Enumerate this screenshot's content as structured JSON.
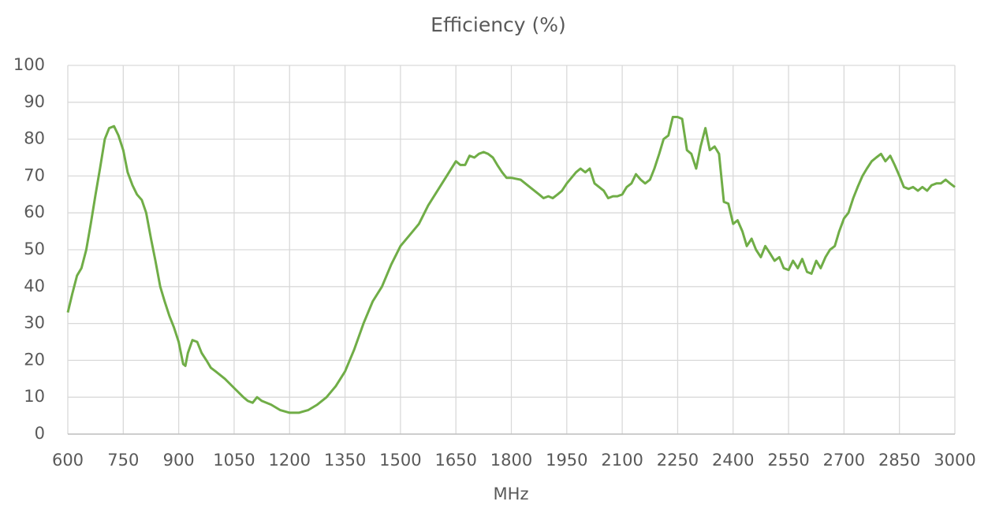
{
  "chart_data": {
    "type": "line",
    "title": "Efficiency (%)",
    "x_label": "MHz",
    "x": [
      600,
      612,
      625,
      637,
      650,
      662,
      675,
      687,
      700,
      712,
      725,
      737,
      750,
      762,
      775,
      787,
      800,
      812,
      825,
      837,
      850,
      862,
      875,
      887,
      900,
      912,
      918,
      925,
      937,
      950,
      962,
      975,
      987,
      1000,
      1025,
      1050,
      1075,
      1087,
      1100,
      1112,
      1125,
      1150,
      1175,
      1200,
      1225,
      1250,
      1275,
      1300,
      1325,
      1350,
      1375,
      1400,
      1425,
      1450,
      1475,
      1500,
      1525,
      1550,
      1575,
      1600,
      1625,
      1650,
      1662,
      1675,
      1687,
      1700,
      1712,
      1725,
      1737,
      1750,
      1762,
      1775,
      1787,
      1800,
      1825,
      1850,
      1875,
      1887,
      1900,
      1912,
      1925,
      1937,
      1950,
      1975,
      1987,
      2000,
      2012,
      2025,
      2050,
      2062,
      2075,
      2087,
      2100,
      2112,
      2125,
      2137,
      2150,
      2162,
      2175,
      2187,
      2200,
      2212,
      2225,
      2237,
      2250,
      2262,
      2275,
      2287,
      2300,
      2312,
      2325,
      2337,
      2350,
      2362,
      2375,
      2387,
      2400,
      2412,
      2425,
      2437,
      2450,
      2462,
      2475,
      2487,
      2500,
      2512,
      2525,
      2537,
      2550,
      2562,
      2575,
      2587,
      2600,
      2612,
      2625,
      2637,
      2650,
      2662,
      2675,
      2687,
      2700,
      2712,
      2725,
      2737,
      2750,
      2762,
      2775,
      2787,
      2800,
      2812,
      2825,
      2837,
      2850,
      2862,
      2875,
      2887,
      2900,
      2912,
      2925,
      2937,
      2950,
      2962,
      2975,
      2987,
      3000
    ],
    "values": [
      33,
      38,
      43,
      45,
      50,
      57,
      65,
      72,
      80,
      83,
      83.5,
      81,
      77,
      71,
      67.5,
      65,
      63.5,
      60,
      53,
      47,
      40,
      36,
      32,
      29,
      25,
      19,
      18.5,
      22,
      25.5,
      25,
      22,
      20,
      18,
      17,
      15,
      12.5,
      10,
      9,
      8.5,
      10,
      9,
      8,
      6.5,
      5.8,
      5.8,
      6.5,
      8,
      10,
      13,
      17,
      23,
      30,
      36,
      40,
      46,
      51,
      54,
      57,
      62,
      66,
      70,
      74,
      73,
      73,
      75.5,
      75,
      76,
      76.5,
      76,
      75,
      73,
      71,
      69.5,
      69.5,
      69,
      67,
      65,
      64,
      64.5,
      64,
      65,
      66,
      68,
      71,
      72,
      71,
      72,
      68,
      66,
      64,
      64.5,
      64.5,
      65,
      67,
      68,
      70.5,
      69,
      68,
      69,
      72,
      76,
      80,
      81,
      86,
      86,
      85.5,
      77,
      76,
      72,
      78,
      83,
      77,
      78,
      76,
      63,
      62.5,
      57,
      58,
      55,
      51,
      53,
      50,
      48,
      51,
      49,
      47,
      48,
      45,
      44.5,
      47,
      45,
      47.5,
      44,
      43.5,
      47,
      45,
      48,
      50,
      51,
      55,
      58.5,
      60,
      64,
      67,
      70,
      72,
      74,
      75,
      76,
      74,
      75.5,
      73,
      70,
      67,
      66.5,
      67,
      66,
      67,
      66,
      67.5,
      68,
      68,
      69,
      68,
      67
    ],
    "color": "#70ad47",
    "xlim": [
      600,
      3000
    ],
    "xticks": [
      600,
      750,
      900,
      1050,
      1200,
      1350,
      1500,
      1650,
      1800,
      1950,
      2100,
      2250,
      2400,
      2550,
      2700,
      2850,
      3000
    ],
    "ylim": [
      0,
      100
    ],
    "yticks": [
      0,
      10,
      20,
      30,
      40,
      50,
      60,
      70,
      80,
      90,
      100
    ],
    "grid": true
  }
}
